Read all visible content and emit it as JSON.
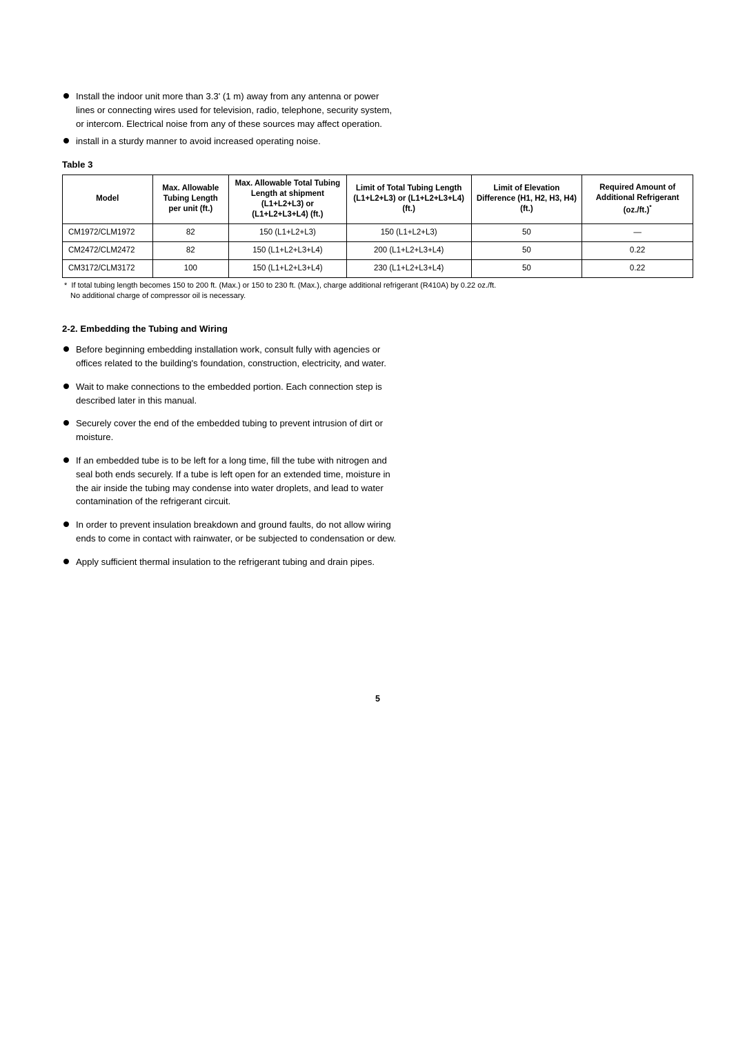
{
  "top_bullets": [
    "Install the indoor unit more than 3.3' (1 m) away from any antenna or power lines or connecting wires used for television, radio, telephone, security system, or intercom. Electrical noise from any of these sources may affect operation.",
    "install in a sturdy manner to avoid increased operating noise."
  ],
  "table": {
    "caption": "Table 3",
    "headers": {
      "c0": "Model",
      "c1": "Max. Allowable Tubing Length per unit (ft.)",
      "c2": "Max. Allowable Total Tubing  Length at shipment (L1+L2+L3) or (L1+L2+L3+L4) (ft.)",
      "c3": "Limit of Total Tubing Length (L1+L2+L3) or (L1+L2+L3+L4) (ft.)",
      "c4": "Limit of Elevation Difference (H1, H2, H3, H4) (ft.)",
      "c5": "Required Amount of Additional Refrigerant (oz./ft.)*"
    },
    "rows": [
      {
        "model": "CM1972/CLM1972",
        "max_allow": "82",
        "max_total": "150 (L1+L2+L3)",
        "limit_total": "150 (L1+L2+L3)",
        "limit_elev": "50",
        "refrig": "—"
      },
      {
        "model": "CM2472/CLM2472",
        "max_allow": "82",
        "max_total": "150 (L1+L2+L3+L4)",
        "limit_total": "200 (L1+L2+L3+L4)",
        "limit_elev": "50",
        "refrig": "0.22"
      },
      {
        "model": "CM3172/CLM3172",
        "max_allow": "100",
        "max_total": "150 (L1+L2+L3+L4)",
        "limit_total": "230 (L1+L2+L3+L4)",
        "limit_elev": "50",
        "refrig": "0.22"
      }
    ],
    "col_widths": [
      "130px",
      "110px",
      "170px",
      "180px",
      "160px",
      "160px"
    ]
  },
  "footnote_marker": "*",
  "footnote_line1": "If total tubing length becomes 150 to 200 ft. (Max.) or 150 to 230 ft. (Max.), charge additional refrigerant (R410A) by 0.22 oz./ft.",
  "footnote_line2": "No additional charge of compressor oil is necessary.",
  "section_heading": "2-2.  Embedding the Tubing and Wiring",
  "section_bullets": [
    "Before beginning embedding installation work, consult fully with agencies or offices related to the building's foundation, construction, electricity, and water.",
    "Wait to make connections to the embedded portion. Each connection step is described later in this manual.",
    "Securely cover the end of the embedded tubing to prevent intrusion of dirt or moisture.",
    "If an embedded tube is to be left for a long time, fill the tube with nitrogen and seal both ends securely. If a tube is left open for an extended time, moisture in the air inside the tubing may condense into water droplets, and lead to water contamination of the refrigerant circuit.",
    "In order to prevent insulation breakdown and ground faults, do not allow wiring ends to come in contact with rainwater, or be subjected to condensation or dew.",
    "Apply sufficient thermal insulation to the refrigerant tubing and drain pipes."
  ],
  "page_number": "5"
}
